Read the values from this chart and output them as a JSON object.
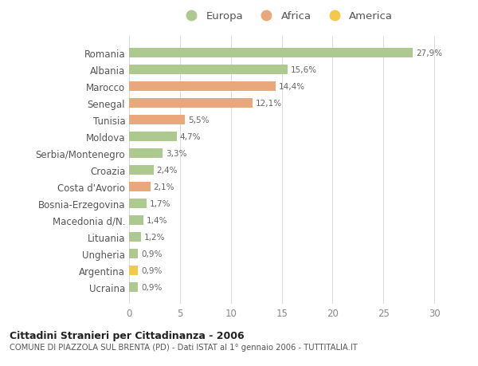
{
  "categories": [
    "Romania",
    "Albania",
    "Marocco",
    "Senegal",
    "Tunisia",
    "Moldova",
    "Serbia/Montenegro",
    "Croazia",
    "Costa d'Avorio",
    "Bosnia-Erzegovina",
    "Macedonia d/N.",
    "Lituania",
    "Ungheria",
    "Argentina",
    "Ucraina"
  ],
  "values": [
    27.9,
    15.6,
    14.4,
    12.1,
    5.5,
    4.7,
    3.3,
    2.4,
    2.1,
    1.7,
    1.4,
    1.2,
    0.9,
    0.9,
    0.9
  ],
  "labels": [
    "27,9%",
    "15,6%",
    "14,4%",
    "12,1%",
    "5,5%",
    "4,7%",
    "3,3%",
    "2,4%",
    "2,1%",
    "1,7%",
    "1,4%",
    "1,2%",
    "0,9%",
    "0,9%",
    "0,9%"
  ],
  "continents": [
    "Europa",
    "Europa",
    "Africa",
    "Africa",
    "Africa",
    "Europa",
    "Europa",
    "Europa",
    "Africa",
    "Europa",
    "Europa",
    "Europa",
    "Europa",
    "America",
    "Europa"
  ],
  "colors": {
    "Europa": "#adc990",
    "Africa": "#e8a87c",
    "America": "#f2c94c"
  },
  "legend": [
    "Europa",
    "Africa",
    "America"
  ],
  "legend_colors": [
    "#adc990",
    "#e8a87c",
    "#f2c94c"
  ],
  "title1": "Cittadini Stranieri per Cittadinanza - 2006",
  "title2": "COMUNE DI PIAZZOLA SUL BRENTA (PD) - Dati ISTAT al 1° gennaio 2006 - TUTTITALIA.IT",
  "xlim": [
    0,
    31
  ],
  "xticks": [
    0,
    5,
    10,
    15,
    20,
    25,
    30
  ],
  "bg_color": "#ffffff",
  "plot_bg_color": "#ffffff",
  "grid_color": "#dddddd"
}
